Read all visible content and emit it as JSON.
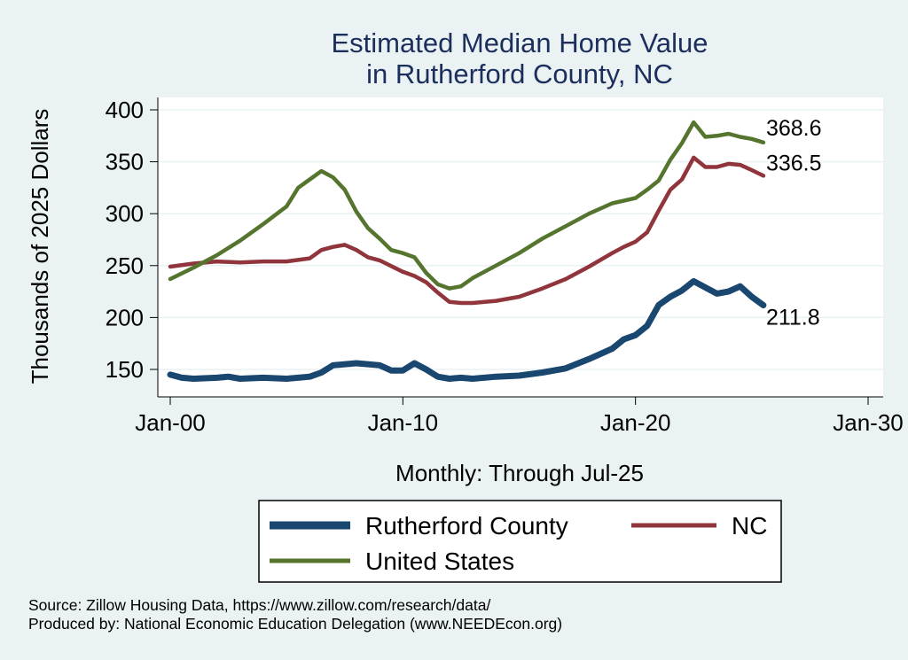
{
  "chart_data": {
    "type": "line",
    "title": [
      "Estimated Median Home Value",
      "in Rutherford County, NC"
    ],
    "xlabel": "Monthly: Through Jul-25",
    "ylabel": "Thousands of 2025 Dollars",
    "xlim": [
      2000,
      2030
    ],
    "ylim": [
      125,
      410
    ],
    "x_ticks": [
      {
        "value": 2000,
        "label": "Jan-00"
      },
      {
        "value": 2010,
        "label": "Jan-10"
      },
      {
        "value": 2020,
        "label": "Jan-20"
      },
      {
        "value": 2030,
        "label": "Jan-30"
      }
    ],
    "y_ticks": [
      {
        "value": 150,
        "label": "150"
      },
      {
        "value": 200,
        "label": "200"
      },
      {
        "value": 250,
        "label": "250"
      },
      {
        "value": 300,
        "label": "300"
      },
      {
        "value": 350,
        "label": "350"
      },
      {
        "value": 400,
        "label": "400"
      }
    ],
    "grid": true,
    "legend_position": "bottom",
    "series": [
      {
        "name": "Rutherford County",
        "color": "#1a476f",
        "end_label": "211.8",
        "points": [
          [
            2000,
            145
          ],
          [
            2000.5,
            142
          ],
          [
            2001,
            141
          ],
          [
            2002,
            142
          ],
          [
            2002.5,
            143
          ],
          [
            2003,
            141
          ],
          [
            2004,
            142
          ],
          [
            2005,
            141
          ],
          [
            2006,
            143
          ],
          [
            2006.5,
            147
          ],
          [
            2007,
            154
          ],
          [
            2008,
            156
          ],
          [
            2009,
            154
          ],
          [
            2009.5,
            149
          ],
          [
            2010,
            149
          ],
          [
            2010.5,
            156
          ],
          [
            2011,
            150
          ],
          [
            2011.5,
            143
          ],
          [
            2012,
            141
          ],
          [
            2012.5,
            142
          ],
          [
            2013,
            141
          ],
          [
            2014,
            143
          ],
          [
            2015,
            144
          ],
          [
            2016,
            147
          ],
          [
            2017,
            151
          ],
          [
            2018,
            160
          ],
          [
            2019,
            170
          ],
          [
            2019.5,
            179
          ],
          [
            2020,
            183
          ],
          [
            2020.5,
            192
          ],
          [
            2021,
            212
          ],
          [
            2021.5,
            220
          ],
          [
            2022,
            226
          ],
          [
            2022.5,
            235
          ],
          [
            2023,
            229
          ],
          [
            2023.5,
            223
          ],
          [
            2024,
            225
          ],
          [
            2024.5,
            230
          ],
          [
            2025,
            220
          ],
          [
            2025.5,
            211.8
          ]
        ]
      },
      {
        "name": "NC",
        "color": "#90353b",
        "end_label": "336.5",
        "points": [
          [
            2000,
            249
          ],
          [
            2001,
            252
          ],
          [
            2002,
            254
          ],
          [
            2003,
            253
          ],
          [
            2004,
            254
          ],
          [
            2005,
            254
          ],
          [
            2006,
            257
          ],
          [
            2006.5,
            265
          ],
          [
            2007,
            268
          ],
          [
            2007.5,
            270
          ],
          [
            2008,
            265
          ],
          [
            2008.5,
            258
          ],
          [
            2009,
            255
          ],
          [
            2010,
            244
          ],
          [
            2010.5,
            240
          ],
          [
            2011,
            234
          ],
          [
            2011.5,
            224
          ],
          [
            2012,
            215
          ],
          [
            2012.5,
            214
          ],
          [
            2013,
            214
          ],
          [
            2014,
            216
          ],
          [
            2015,
            220
          ],
          [
            2016,
            228
          ],
          [
            2017,
            237
          ],
          [
            2018,
            249
          ],
          [
            2019,
            262
          ],
          [
            2019.5,
            268
          ],
          [
            2020,
            273
          ],
          [
            2020.5,
            282
          ],
          [
            2021,
            303
          ],
          [
            2021.5,
            323
          ],
          [
            2022,
            333
          ],
          [
            2022.5,
            354
          ],
          [
            2023,
            345
          ],
          [
            2023.5,
            345
          ],
          [
            2024,
            348
          ],
          [
            2024.5,
            347
          ],
          [
            2025,
            342
          ],
          [
            2025.5,
            336.5
          ]
        ]
      },
      {
        "name": "United States",
        "color": "#55752f",
        "end_label": "368.6",
        "points": [
          [
            2000,
            237
          ],
          [
            2001,
            248
          ],
          [
            2002,
            260
          ],
          [
            2003,
            274
          ],
          [
            2004,
            290
          ],
          [
            2005,
            307
          ],
          [
            2005.5,
            325
          ],
          [
            2006,
            333
          ],
          [
            2006.5,
            341
          ],
          [
            2007,
            335
          ],
          [
            2007.5,
            323
          ],
          [
            2008,
            302
          ],
          [
            2008.5,
            286
          ],
          [
            2009,
            276
          ],
          [
            2009.5,
            265
          ],
          [
            2010,
            262
          ],
          [
            2010.5,
            258
          ],
          [
            2011,
            243
          ],
          [
            2011.5,
            232
          ],
          [
            2012,
            228
          ],
          [
            2012.5,
            230
          ],
          [
            2013,
            238
          ],
          [
            2014,
            250
          ],
          [
            2015,
            262
          ],
          [
            2016,
            276
          ],
          [
            2017,
            288
          ],
          [
            2018,
            300
          ],
          [
            2019,
            310
          ],
          [
            2020,
            315
          ],
          [
            2020.5,
            323
          ],
          [
            2021,
            332
          ],
          [
            2021.5,
            352
          ],
          [
            2022,
            368
          ],
          [
            2022.5,
            388
          ],
          [
            2023,
            374
          ],
          [
            2023.5,
            375
          ],
          [
            2024,
            377
          ],
          [
            2024.5,
            374
          ],
          [
            2025,
            372
          ],
          [
            2025.5,
            368.6
          ]
        ]
      }
    ]
  },
  "legend": [
    {
      "label": "Rutherford County",
      "color": "#1a476f"
    },
    {
      "label": "NC",
      "color": "#90353b"
    },
    {
      "label": "United States",
      "color": "#55752f"
    }
  ],
  "source_lines": [
    "Source: Zillow Housing Data, https://www.zillow.com/research/data/",
    "Produced by: National Economic Education Delegation (www.NEEDEcon.org)"
  ]
}
